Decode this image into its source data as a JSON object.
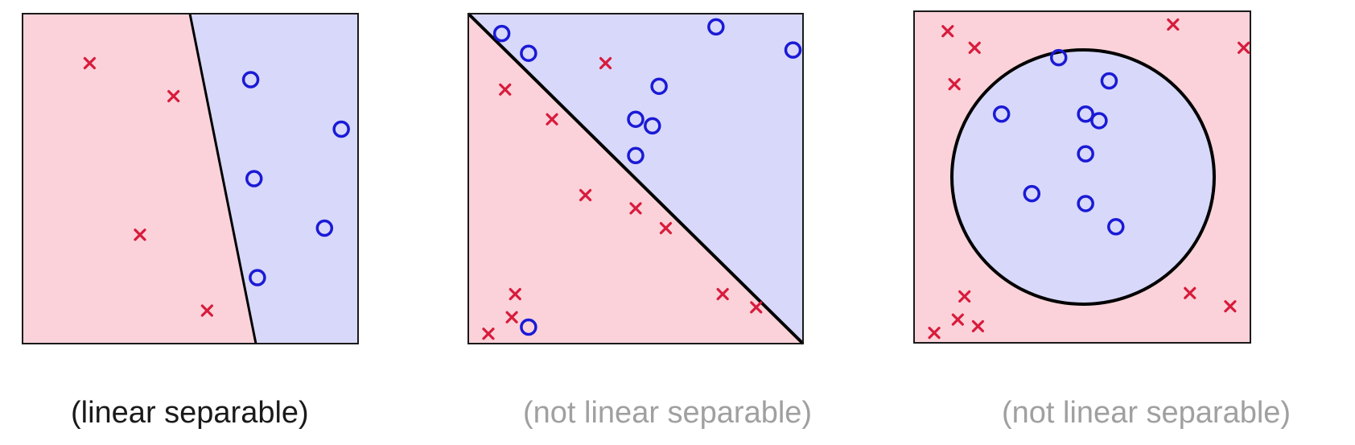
{
  "colors": {
    "red_region": "#fbd2d9",
    "blue_region": "#d8d8fa",
    "x_marker": "#d81b3c",
    "o_marker": "#1a1ad6",
    "boundary": "#000000",
    "caption_active": "#1a1a1a",
    "caption_inactive": "#a0a0a0"
  },
  "panels": [
    {
      "caption": "(linear separable)",
      "boundary": "line",
      "crosses": [
        [
          0.2,
          0.85
        ],
        [
          0.45,
          0.75
        ],
        [
          0.35,
          0.33
        ],
        [
          0.55,
          0.1
        ]
      ],
      "circles": [
        [
          0.68,
          0.8
        ],
        [
          0.95,
          0.65
        ],
        [
          0.69,
          0.5
        ],
        [
          0.9,
          0.35
        ],
        [
          0.7,
          0.2
        ]
      ]
    },
    {
      "caption": "(not linear separable)",
      "boundary": "line",
      "crosses": [
        [
          0.41,
          0.85
        ],
        [
          0.11,
          0.77
        ],
        [
          0.25,
          0.68
        ],
        [
          0.35,
          0.45
        ],
        [
          0.5,
          0.41
        ],
        [
          0.59,
          0.35
        ],
        [
          0.14,
          0.15
        ],
        [
          0.13,
          0.08
        ],
        [
          0.06,
          0.03
        ],
        [
          0.76,
          0.15
        ],
        [
          0.86,
          0.11
        ]
      ],
      "circles": [
        [
          0.1,
          0.94
        ],
        [
          0.18,
          0.88
        ],
        [
          0.74,
          0.96
        ],
        [
          0.97,
          0.89
        ],
        [
          0.57,
          0.78
        ],
        [
          0.5,
          0.68
        ],
        [
          0.55,
          0.66
        ],
        [
          0.5,
          0.57
        ],
        [
          0.18,
          0.05
        ]
      ]
    },
    {
      "caption": "(not linear separable)",
      "boundary": "circle",
      "crosses": [
        [
          0.1,
          0.94
        ],
        [
          0.18,
          0.89
        ],
        [
          0.12,
          0.78
        ],
        [
          0.77,
          0.96
        ],
        [
          0.98,
          0.89
        ],
        [
          0.15,
          0.14
        ],
        [
          0.13,
          0.07
        ],
        [
          0.19,
          0.05
        ],
        [
          0.06,
          0.03
        ],
        [
          0.82,
          0.15
        ],
        [
          0.94,
          0.11
        ]
      ],
      "circles": [
        [
          0.43,
          0.86
        ],
        [
          0.58,
          0.79
        ],
        [
          0.26,
          0.69
        ],
        [
          0.51,
          0.69
        ],
        [
          0.55,
          0.67
        ],
        [
          0.51,
          0.57
        ],
        [
          0.35,
          0.45
        ],
        [
          0.51,
          0.42
        ],
        [
          0.6,
          0.35
        ]
      ]
    }
  ]
}
